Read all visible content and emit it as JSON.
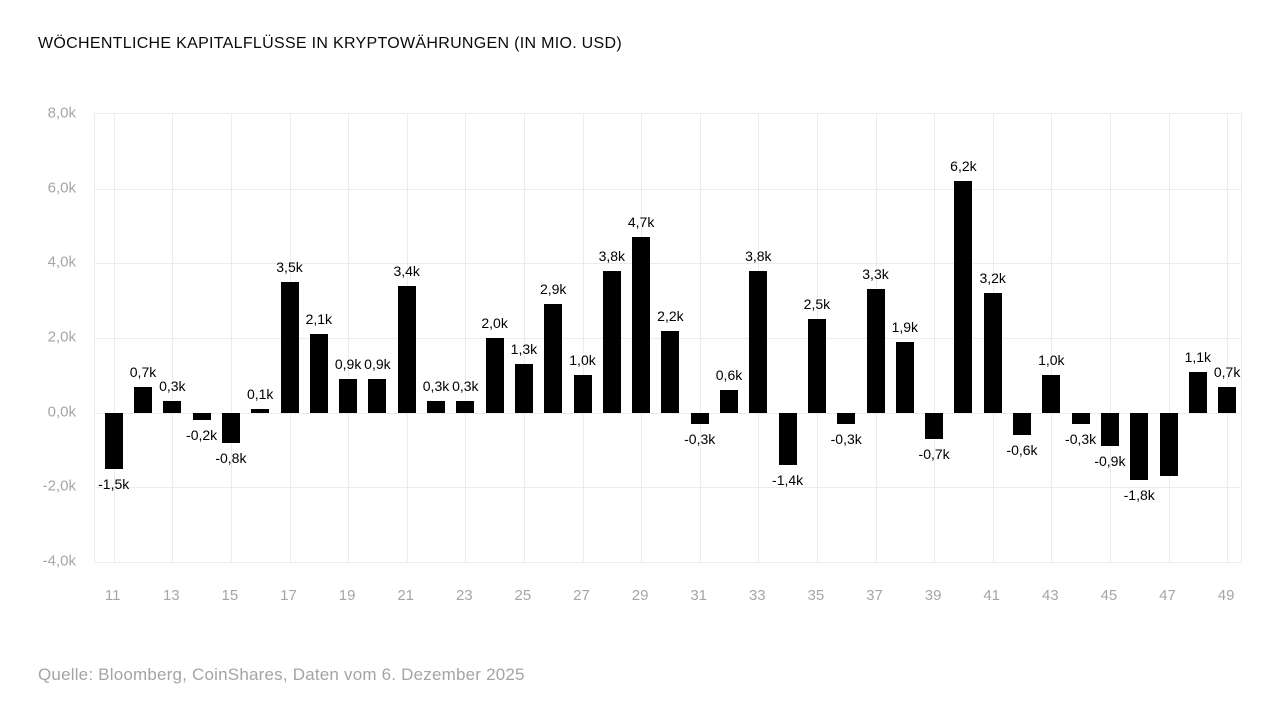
{
  "title": "WÖCHENTLICHE KAPITALFLÜSSE IN KRYPTOWÄHRUNGEN (IN MIO. USD)",
  "source": "Quelle: Bloomberg, CoinShares, Daten vom 6. Dezember 2025",
  "chart_data": {
    "type": "bar",
    "title": "WÖCHENTLICHE KAPITALFLÜSSE IN KRYPTOWÄHRUNGEN (IN MIO. USD)",
    "xlabel": "",
    "ylabel": "",
    "ylim": [
      -4000,
      8000
    ],
    "y_unit": "Mio. USD",
    "grid": true,
    "legend_position": "none",
    "bar_color": "#000000",
    "grid_color": "#ececec",
    "axis_label_color": "#a6a6a6",
    "categories": [
      11,
      12,
      13,
      14,
      15,
      16,
      17,
      18,
      19,
      20,
      21,
      22,
      23,
      24,
      25,
      26,
      27,
      28,
      29,
      30,
      31,
      32,
      33,
      34,
      35,
      36,
      37,
      38,
      39,
      40,
      41,
      42,
      43,
      44,
      45,
      46,
      47,
      48,
      49
    ],
    "values": [
      -1.5,
      0.7,
      0.3,
      -0.2,
      -0.8,
      0.1,
      3.5,
      2.1,
      0.9,
      0.9,
      3.4,
      0.3,
      0.3,
      2.0,
      1.3,
      2.9,
      1.0,
      3.8,
      4.7,
      2.2,
      -0.3,
      0.6,
      3.8,
      -1.4,
      2.5,
      -0.3,
      3.3,
      1.9,
      -0.7,
      6.2,
      3.2,
      -0.6,
      1.0,
      -0.3,
      -0.9,
      -1.8,
      -1.7,
      1.1,
      0.7
    ],
    "value_labels": [
      "-1,5k",
      "0,7k",
      "0,3k",
      "-0,2k",
      "-0,8k",
      "0,1k",
      "3,5k",
      "2,1k",
      "0,9k",
      "0,9k",
      "3,4k",
      "0,3k",
      "0,3k",
      "2,0k",
      "1,3k",
      "2,9k",
      "1,0k",
      "3,8k",
      "4,7k",
      "2,2k",
      "-0,3k",
      "0,6k",
      "3,8k",
      "-1,4k",
      "2,5k",
      "-0,3k",
      "3,3k",
      "1,9k",
      "-0,7k",
      "6,2k",
      "3,2k",
      "-0,6k",
      "1,0k",
      "-0,3k",
      "-0,9k",
      "-1,8k",
      "",
      "1,1k",
      "0,7k"
    ],
    "x_tick_labels": [
      "11",
      "13",
      "15",
      "17",
      "19",
      "21",
      "23",
      "25",
      "27",
      "29",
      "31",
      "33",
      "35",
      "37",
      "39",
      "41",
      "43",
      "45",
      "47",
      "49"
    ],
    "y_tick_labels": [
      "8,0k",
      "6,0k",
      "4,0k",
      "2,0k",
      "0,0k",
      "-2,0k",
      "-4,0k"
    ],
    "y_tick_values": [
      8,
      6,
      4,
      2,
      0,
      -2,
      -4
    ]
  }
}
